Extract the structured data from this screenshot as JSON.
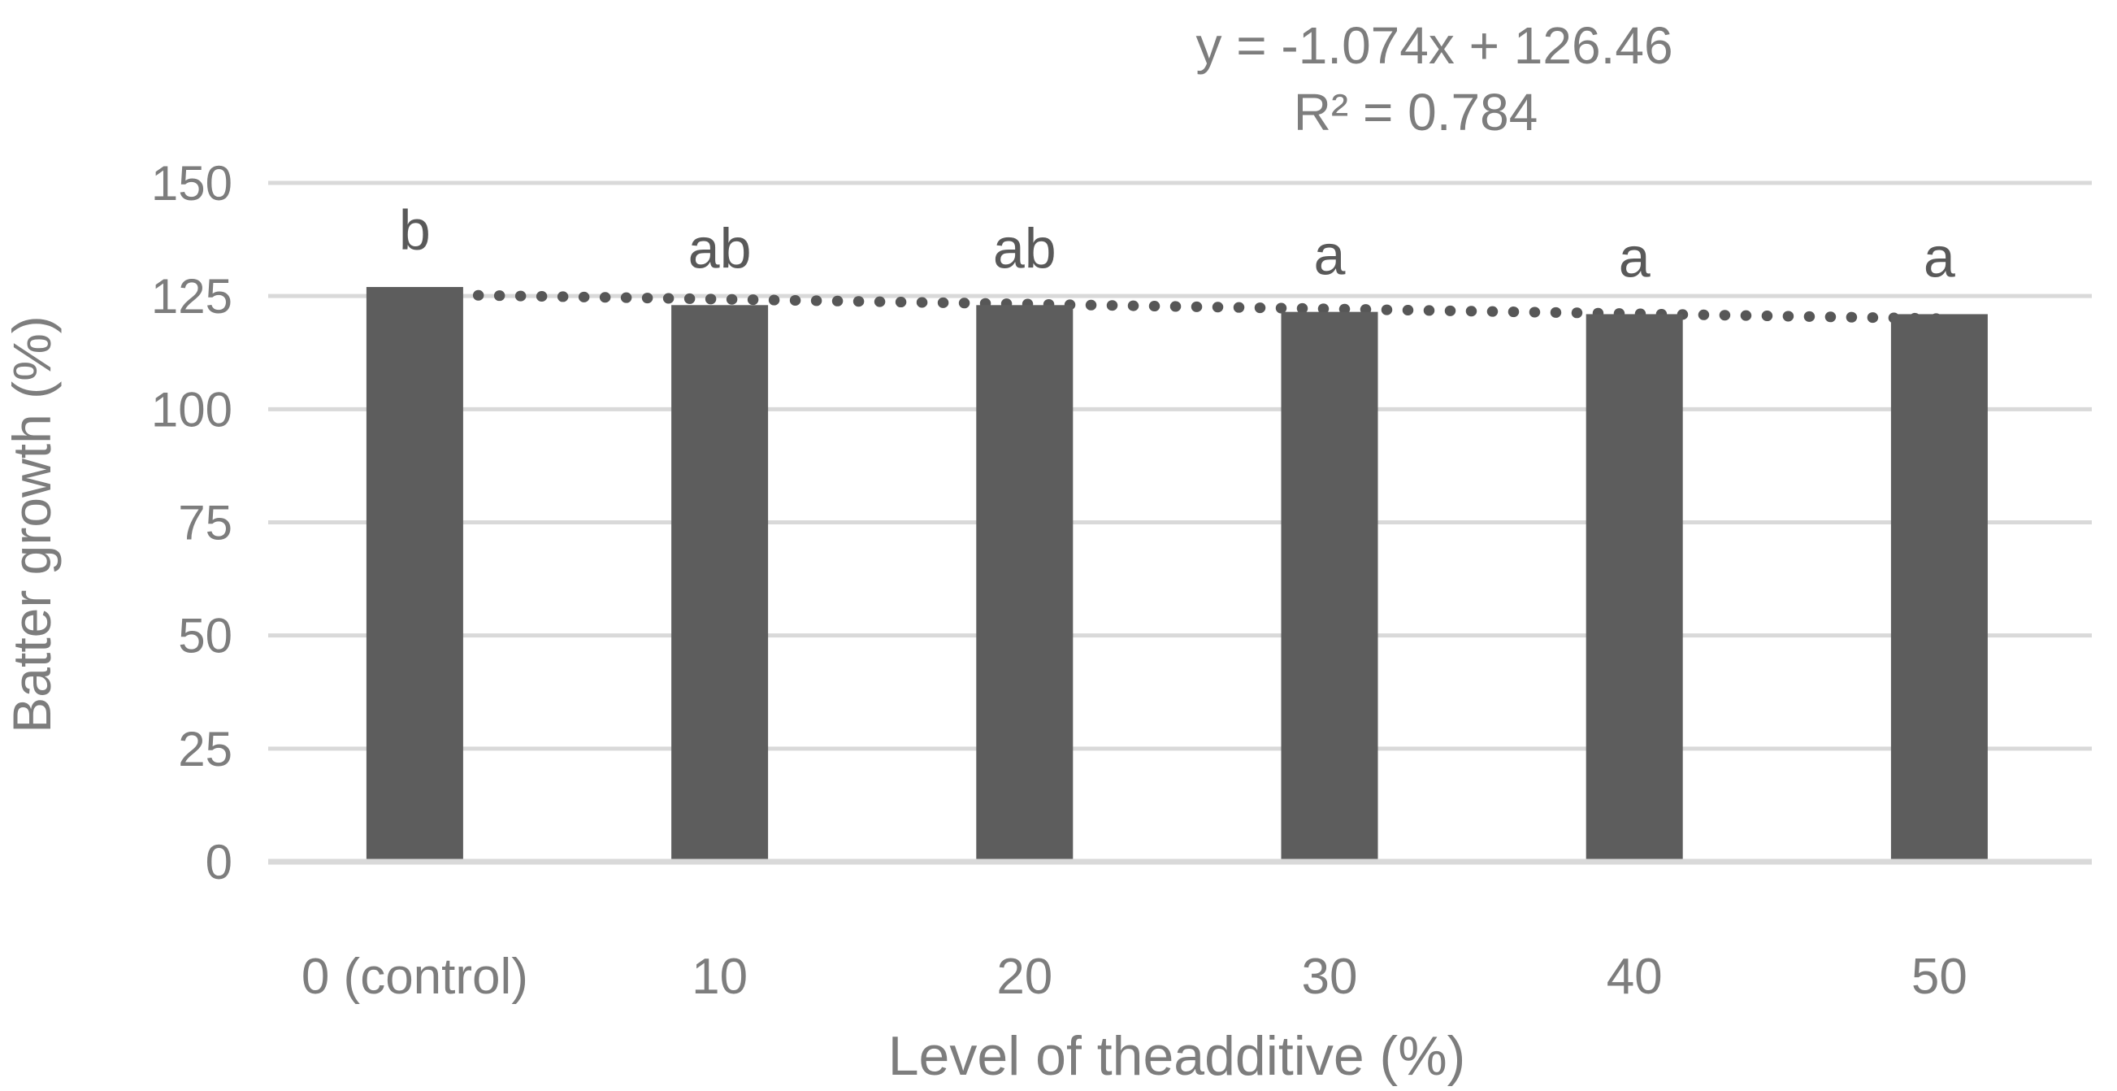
{
  "chart_data": {
    "type": "bar",
    "title": "",
    "categories": [
      "0 (control)",
      "10",
      "20",
      "30",
      "40",
      "50"
    ],
    "values": [
      127,
      123,
      123,
      121.5,
      121,
      121
    ],
    "significance_letters": [
      "b",
      "ab",
      "ab",
      "a",
      "a",
      "a"
    ],
    "xlabel": "Level of theadditive (%)",
    "ylabel": "Batter growth (%)",
    "ylim": [
      0,
      150
    ],
    "yticks": [
      0,
      25,
      50,
      75,
      100,
      125,
      150
    ],
    "grid": true,
    "legend": "none",
    "trendline": {
      "type": "linear",
      "style": "dotted",
      "slope": -1.074,
      "intercept": 126.46,
      "equation": "y = -1.074x + 126.46",
      "r_squared": 0.784,
      "r_squared_label": "R² = 0.784"
    },
    "colors": {
      "bar": "#5d5d5d",
      "gridline": "#d9d9d9",
      "axis_line": "#d9d9d9",
      "axis_text": "#7d7d7d",
      "annotation_text": "#595959",
      "trendline": "#575757",
      "background": "#ffffff"
    }
  }
}
